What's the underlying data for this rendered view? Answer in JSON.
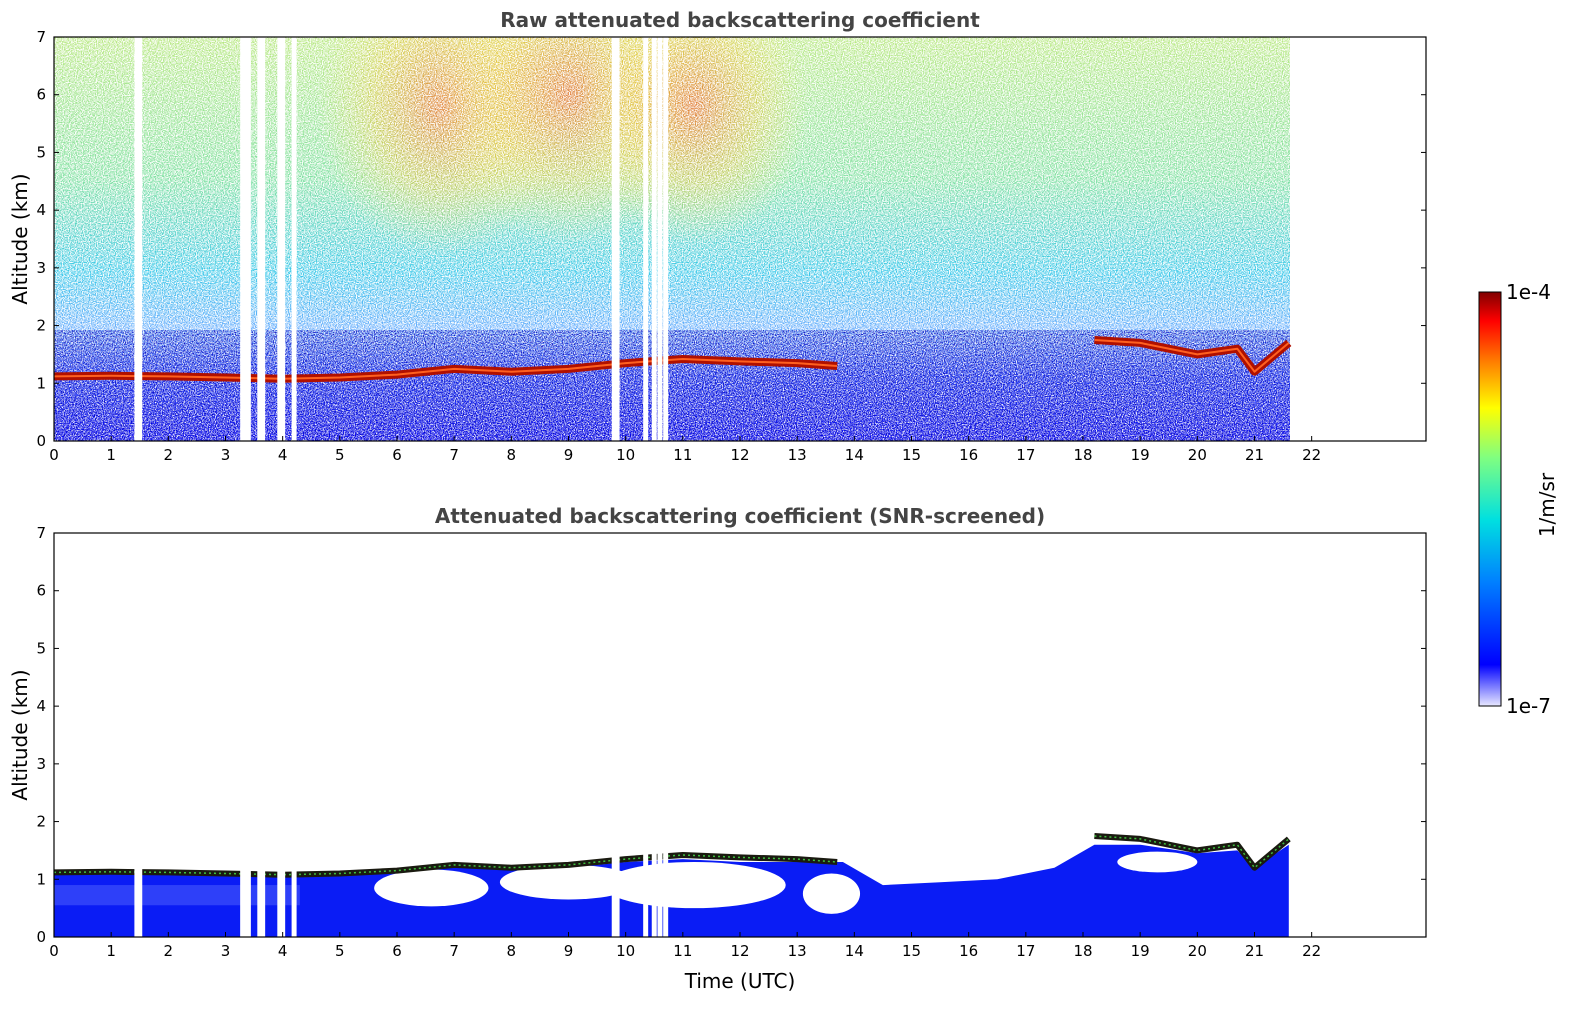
{
  "chart_data": [
    {
      "type": "heatmap",
      "title": "Raw attenuated backscattering coefficient",
      "xlabel": "",
      "ylabel": "Altitude (km)",
      "xlim": [
        0,
        24
      ],
      "ylim": [
        0,
        7
      ],
      "xticks": [
        "0",
        "1",
        "2",
        "3",
        "4",
        "5",
        "6",
        "7",
        "8",
        "9",
        "10",
        "11",
        "12",
        "13",
        "14",
        "15",
        "16",
        "17",
        "18",
        "19",
        "20",
        "21",
        "22"
      ],
      "yticks": [
        "0",
        "1",
        "2",
        "3",
        "4",
        "5",
        "6",
        "7"
      ],
      "data_end_hour": 21.6,
      "missing_data_hours": [
        1.45,
        1.5,
        3.3,
        3.35,
        3.4,
        3.6,
        3.65,
        3.95,
        4.0,
        4.2,
        9.8,
        9.85,
        10.35,
        10.5,
        10.6,
        10.7
      ],
      "cloud_base_km": [
        {
          "hour": 0.0,
          "km": 1.12
        },
        {
          "hour": 1.0,
          "km": 1.13
        },
        {
          "hour": 2.0,
          "km": 1.12
        },
        {
          "hour": 3.0,
          "km": 1.1
        },
        {
          "hour": 4.0,
          "km": 1.08
        },
        {
          "hour": 5.0,
          "km": 1.1
        },
        {
          "hour": 6.0,
          "km": 1.15
        },
        {
          "hour": 7.0,
          "km": 1.25
        },
        {
          "hour": 8.0,
          "km": 1.2
        },
        {
          "hour": 9.0,
          "km": 1.25
        },
        {
          "hour": 10.0,
          "km": 1.35
        },
        {
          "hour": 11.0,
          "km": 1.42
        },
        {
          "hour": 12.0,
          "km": 1.38
        },
        {
          "hour": 13.0,
          "km": 1.35
        },
        {
          "hour": 13.7,
          "km": 1.3
        },
        {
          "hour": 18.2,
          "km": 1.75
        },
        {
          "hour": 19.0,
          "km": 1.7
        },
        {
          "hour": 20.0,
          "km": 1.5
        },
        {
          "hour": 20.7,
          "km": 1.6
        },
        {
          "hour": 21.0,
          "km": 1.2
        },
        {
          "hour": 21.6,
          "km": 1.7
        }
      ]
    },
    {
      "type": "heatmap",
      "title": "Attenuated backscattering coefficient (SNR-screened)",
      "xlabel": "Time (UTC)",
      "ylabel": "Altitude (km)",
      "xlim": [
        0,
        24
      ],
      "ylim": [
        0,
        7
      ],
      "xticks": [
        "0",
        "1",
        "2",
        "3",
        "4",
        "5",
        "6",
        "7",
        "8",
        "9",
        "10",
        "11",
        "12",
        "13",
        "14",
        "15",
        "16",
        "17",
        "18",
        "19",
        "20",
        "21",
        "22"
      ],
      "yticks": [
        "0",
        "1",
        "2",
        "3",
        "4",
        "5",
        "6",
        "7"
      ],
      "data_end_hour": 21.6
    }
  ],
  "colorbar": {
    "label": "1/m/sr",
    "max_label": "1e-4",
    "min_label": "1e-7",
    "colors": [
      "#e8e8ff",
      "#0000ff",
      "#0080ff",
      "#00e0e0",
      "#80ff80",
      "#ffff00",
      "#ff8000",
      "#ff0000",
      "#800000"
    ]
  }
}
